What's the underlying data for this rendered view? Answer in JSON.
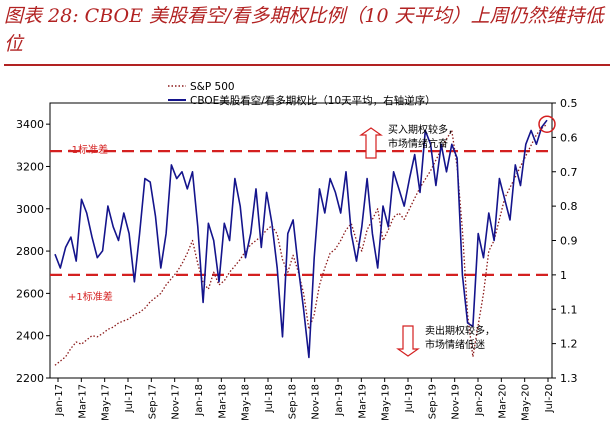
{
  "header": {
    "title": "图表 28: CBOE 美股看空/看多期权比例（10 天平均）上周仍然维持低位"
  },
  "colors": {
    "accent": "#b22222",
    "band": "#d42020",
    "sp500": "#8b1a1a",
    "cboe": "#14148c",
    "arrow": "#d42020"
  },
  "chart_data": {
    "type": "line",
    "title": "图表 28: CBOE 美股看空/看多期权比例（10 天平均）上周仍然维持低位",
    "x_tick_labels": [
      "Jan-17",
      "Mar-17",
      "May-17",
      "Jul-17",
      "Sep-17",
      "Nov-17",
      "Jan-18",
      "Mar-18",
      "May-18",
      "Jul-18",
      "Sep-18",
      "Nov-18",
      "Jan-19",
      "Mar-19",
      "May-19",
      "Jul-19",
      "Sep-19",
      "Nov-19",
      "Jan-20",
      "Mar-20",
      "May-20",
      "Jul-20"
    ],
    "y_left": {
      "ticks": [
        "3400",
        "3200",
        "3000",
        "2800",
        "2600",
        "2400",
        "2200"
      ],
      "min": 2200,
      "max": 3500
    },
    "y_right": {
      "ticks": [
        "0.5",
        "0.6",
        "0.7",
        "0.8",
        "0.9",
        "1",
        "1.1",
        "1.2",
        "1.3"
      ],
      "min": 0.5,
      "max": 1.3,
      "inverted": true
    },
    "legend": [
      {
        "name": "S&P 500",
        "style": "dotted"
      },
      {
        "name": "CBOE美股看空/看多期权比（10天平均，右轴逆序）",
        "style": "solid"
      }
    ],
    "bands": [
      {
        "label": "-1标准差",
        "value_right_axis": 0.64
      },
      {
        "label": "+1标准差",
        "value_right_axis": 1.0
      }
    ],
    "annotations": [
      {
        "text_line1": "买入期权较多，",
        "text_line2": "市场情绪亢奋"
      },
      {
        "text_line1": "卖出期权较多，",
        "text_line2": "市场情绪低迷"
      }
    ],
    "series": [
      {
        "name": "S&P 500",
        "axis": "left",
        "points": [
          [
            0,
            2260
          ],
          [
            1,
            2280
          ],
          [
            2,
            2300
          ],
          [
            3,
            2340
          ],
          [
            4,
            2370
          ],
          [
            5,
            2360
          ],
          [
            6,
            2380
          ],
          [
            7,
            2400
          ],
          [
            8,
            2395
          ],
          [
            9,
            2410
          ],
          [
            10,
            2430
          ],
          [
            11,
            2440
          ],
          [
            12,
            2460
          ],
          [
            13,
            2470
          ],
          [
            14,
            2480
          ],
          [
            15,
            2500
          ],
          [
            16,
            2510
          ],
          [
            17,
            2530
          ],
          [
            18,
            2560
          ],
          [
            19,
            2580
          ],
          [
            20,
            2600
          ],
          [
            21,
            2640
          ],
          [
            22,
            2670
          ],
          [
            23,
            2700
          ],
          [
            24,
            2740
          ],
          [
            25,
            2790
          ],
          [
            26,
            2850
          ],
          [
            27,
            2740
          ],
          [
            28,
            2650
          ],
          [
            29,
            2620
          ],
          [
            30,
            2700
          ],
          [
            31,
            2640
          ],
          [
            32,
            2660
          ],
          [
            33,
            2700
          ],
          [
            34,
            2730
          ],
          [
            35,
            2760
          ],
          [
            36,
            2800
          ],
          [
            37,
            2830
          ],
          [
            38,
            2850
          ],
          [
            39,
            2870
          ],
          [
            40,
            2900
          ],
          [
            41,
            2920
          ],
          [
            42,
            2880
          ],
          [
            43,
            2760
          ],
          [
            44,
            2700
          ],
          [
            45,
            2780
          ],
          [
            46,
            2700
          ],
          [
            47,
            2600
          ],
          [
            48,
            2430
          ],
          [
            49,
            2500
          ],
          [
            50,
            2640
          ],
          [
            51,
            2720
          ],
          [
            52,
            2790
          ],
          [
            53,
            2810
          ],
          [
            54,
            2850
          ],
          [
            55,
            2900
          ],
          [
            56,
            2930
          ],
          [
            57,
            2850
          ],
          [
            58,
            2800
          ],
          [
            59,
            2900
          ],
          [
            60,
            2950
          ],
          [
            61,
            3000
          ],
          [
            62,
            2850
          ],
          [
            63,
            2900
          ],
          [
            64,
            2960
          ],
          [
            65,
            2980
          ],
          [
            66,
            2950
          ],
          [
            67,
            3000
          ],
          [
            68,
            3050
          ],
          [
            69,
            3100
          ],
          [
            70,
            3140
          ],
          [
            71,
            3180
          ],
          [
            72,
            3230
          ],
          [
            73,
            3280
          ],
          [
            74,
            3330
          ],
          [
            75,
            3370
          ],
          [
            76,
            3200
          ],
          [
            77,
            2900
          ],
          [
            78,
            2500
          ],
          [
            79,
            2300
          ],
          [
            80,
            2450
          ],
          [
            81,
            2600
          ],
          [
            82,
            2800
          ],
          [
            83,
            2850
          ],
          [
            84,
            2950
          ],
          [
            85,
            3050
          ],
          [
            86,
            3100
          ],
          [
            87,
            3150
          ],
          [
            88,
            3200
          ],
          [
            89,
            3250
          ],
          [
            90,
            3300
          ],
          [
            91,
            3350
          ],
          [
            92,
            3380
          ],
          [
            93,
            3400
          ]
        ]
      },
      {
        "name": "CBOE美股看空/看多期权比（10天平均，右轴逆序）",
        "axis": "right",
        "points": [
          [
            0,
            0.94
          ],
          [
            1,
            0.98
          ],
          [
            2,
            0.92
          ],
          [
            3,
            0.89
          ],
          [
            4,
            0.96
          ],
          [
            5,
            0.78
          ],
          [
            6,
            0.82
          ],
          [
            7,
            0.89
          ],
          [
            8,
            0.95
          ],
          [
            9,
            0.93
          ],
          [
            10,
            0.8
          ],
          [
            11,
            0.86
          ],
          [
            12,
            0.9
          ],
          [
            13,
            0.82
          ],
          [
            14,
            0.88
          ],
          [
            15,
            1.02
          ],
          [
            16,
            0.88
          ],
          [
            17,
            0.72
          ],
          [
            18,
            0.73
          ],
          [
            19,
            0.83
          ],
          [
            20,
            0.98
          ],
          [
            21,
            0.88
          ],
          [
            22,
            0.68
          ],
          [
            23,
            0.72
          ],
          [
            24,
            0.7
          ],
          [
            25,
            0.75
          ],
          [
            26,
            0.7
          ],
          [
            27,
            0.86
          ],
          [
            28,
            1.08
          ],
          [
            29,
            0.85
          ],
          [
            30,
            0.9
          ],
          [
            31,
            1.02
          ],
          [
            32,
            0.85
          ],
          [
            33,
            0.9
          ],
          [
            34,
            0.72
          ],
          [
            35,
            0.8
          ],
          [
            36,
            0.95
          ],
          [
            37,
            0.88
          ],
          [
            38,
            0.75
          ],
          [
            39,
            0.92
          ],
          [
            40,
            0.76
          ],
          [
            41,
            0.85
          ],
          [
            42,
            0.98
          ],
          [
            43,
            1.18
          ],
          [
            44,
            0.88
          ],
          [
            45,
            0.84
          ],
          [
            46,
            0.98
          ],
          [
            47,
            1.1
          ],
          [
            48,
            1.24
          ],
          [
            49,
            0.95
          ],
          [
            50,
            0.75
          ],
          [
            51,
            0.82
          ],
          [
            52,
            0.72
          ],
          [
            53,
            0.76
          ],
          [
            54,
            0.82
          ],
          [
            55,
            0.7
          ],
          [
            56,
            0.88
          ],
          [
            57,
            0.96
          ],
          [
            58,
            0.86
          ],
          [
            59,
            0.72
          ],
          [
            60,
            0.88
          ],
          [
            61,
            0.98
          ],
          [
            62,
            0.8
          ],
          [
            63,
            0.86
          ],
          [
            64,
            0.7
          ],
          [
            65,
            0.75
          ],
          [
            66,
            0.8
          ],
          [
            67,
            0.72
          ],
          [
            68,
            0.65
          ],
          [
            69,
            0.76
          ],
          [
            70,
            0.58
          ],
          [
            71,
            0.62
          ],
          [
            72,
            0.74
          ],
          [
            73,
            0.62
          ],
          [
            74,
            0.7
          ],
          [
            75,
            0.62
          ],
          [
            76,
            0.66
          ],
          [
            77,
            1.0
          ],
          [
            78,
            1.14
          ],
          [
            79,
            1.15
          ],
          [
            80,
            0.88
          ],
          [
            81,
            0.95
          ],
          [
            82,
            0.82
          ],
          [
            83,
            0.9
          ],
          [
            84,
            0.72
          ],
          [
            85,
            0.78
          ],
          [
            86,
            0.84
          ],
          [
            87,
            0.68
          ],
          [
            88,
            0.74
          ],
          [
            89,
            0.62
          ],
          [
            90,
            0.58
          ],
          [
            91,
            0.62
          ],
          [
            92,
            0.57
          ],
          [
            93,
            0.55
          ]
        ]
      }
    ]
  }
}
